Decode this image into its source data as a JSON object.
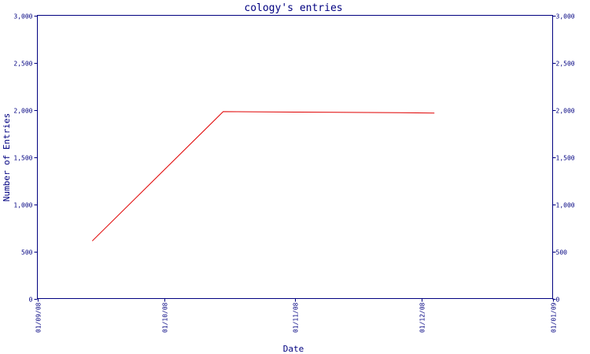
{
  "chart_data": {
    "type": "line",
    "title": "cology's entries",
    "xlabel": "Date",
    "ylabel": "Number of Entries",
    "ylim": [
      0,
      3000
    ],
    "xlim": [
      "2008-09-01",
      "2009-01-01"
    ],
    "y_ticks": [
      {
        "value": 0,
        "label": "0"
      },
      {
        "value": 500,
        "label": "500"
      },
      {
        "value": 1000,
        "label": "1,000"
      },
      {
        "value": 1500,
        "label": "1,500"
      },
      {
        "value": 2000,
        "label": "2,000"
      },
      {
        "value": 2500,
        "label": "2,500"
      },
      {
        "value": 3000,
        "label": "3,000"
      }
    ],
    "x_ticks": [
      {
        "value": "2008-09-01",
        "label": "01/09/08"
      },
      {
        "value": "2008-10-01",
        "label": "01/10/08"
      },
      {
        "value": "2008-11-01",
        "label": "01/11/08"
      },
      {
        "value": "2008-12-01",
        "label": "01/12/08"
      },
      {
        "value": "2009-01-01",
        "label": "01/01/09"
      }
    ],
    "grid": false,
    "series": [
      {
        "color": "#e00000",
        "points": [
          {
            "x": "2008-09-14",
            "y": 610
          },
          {
            "x": "2008-10-15",
            "y": 1980
          },
          {
            "x": "2008-11-01",
            "y": 1975
          },
          {
            "x": "2008-11-22",
            "y": 1970
          },
          {
            "x": "2008-12-04",
            "y": 1965
          }
        ]
      }
    ]
  }
}
